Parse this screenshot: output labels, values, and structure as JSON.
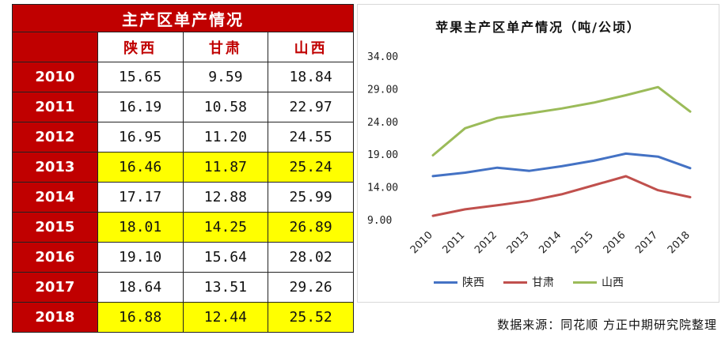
{
  "table": {
    "title": "主产区单产情况",
    "columns": [
      "陕西",
      "甘肃",
      "山西"
    ],
    "rows": [
      {
        "year": "2010",
        "values": [
          "15.65",
          "9.59",
          "18.84"
        ],
        "highlight": false
      },
      {
        "year": "2011",
        "values": [
          "16.19",
          "10.58",
          "22.97"
        ],
        "highlight": false
      },
      {
        "year": "2012",
        "values": [
          "16.95",
          "11.20",
          "24.55"
        ],
        "highlight": false
      },
      {
        "year": "2013",
        "values": [
          "16.46",
          "11.87",
          "25.24"
        ],
        "highlight": true
      },
      {
        "year": "2014",
        "values": [
          "17.17",
          "12.88",
          "25.99"
        ],
        "highlight": false
      },
      {
        "year": "2015",
        "values": [
          "18.01",
          "14.25",
          "26.89"
        ],
        "highlight": true
      },
      {
        "year": "2016",
        "values": [
          "19.10",
          "15.64",
          "28.02"
        ],
        "highlight": false
      },
      {
        "year": "2017",
        "values": [
          "18.64",
          "13.51",
          "29.26"
        ],
        "highlight": false
      },
      {
        "year": "2018",
        "values": [
          "16.88",
          "12.44",
          "25.52"
        ],
        "highlight": true
      }
    ],
    "colors": {
      "header": "#c00000",
      "highlight": "#ffff00"
    }
  },
  "chart_data": {
    "type": "line",
    "title": "苹果主产区单产情况（吨/公顷）",
    "x": [
      "2010",
      "2011",
      "2012",
      "2013",
      "2014",
      "2015",
      "2016",
      "2017",
      "2018"
    ],
    "series": [
      {
        "name": "陕西",
        "color": "#4472c4",
        "values": [
          15.65,
          16.19,
          16.95,
          16.46,
          17.17,
          18.01,
          19.1,
          18.64,
          16.88
        ]
      },
      {
        "name": "甘肃",
        "color": "#c0504d",
        "values": [
          9.59,
          10.58,
          11.2,
          11.87,
          12.88,
          14.25,
          15.64,
          13.51,
          12.44
        ]
      },
      {
        "name": "山西",
        "color": "#9bbb59",
        "values": [
          18.84,
          22.97,
          24.55,
          25.24,
          25.99,
          26.89,
          28.02,
          29.26,
          25.52
        ]
      }
    ],
    "yticks": [
      "9.00",
      "14.00",
      "19.00",
      "24.00",
      "29.00",
      "34.00"
    ],
    "ylim": [
      9,
      34
    ],
    "grid": false,
    "legend": "bottom"
  },
  "footer": {
    "source": "数据来源：同花顺 方正中期研究院整理"
  }
}
